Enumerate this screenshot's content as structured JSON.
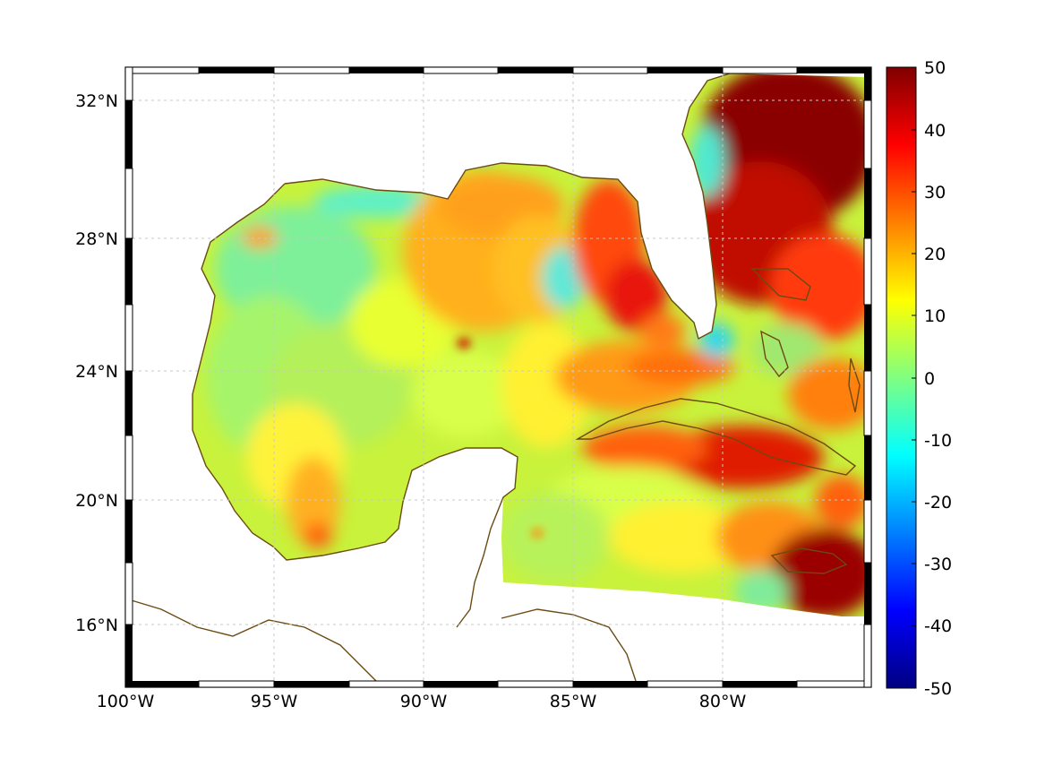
{
  "map": {
    "lon_labels": [
      "100°W",
      "95°W",
      "90°W",
      "85°W",
      "80°W"
    ],
    "lat_labels": [
      "32°N",
      "28°N",
      "24°N",
      "20°N",
      "16°N"
    ],
    "extent": {
      "lon_min": -100,
      "lon_max": -75,
      "lat_min": 14,
      "lat_max": 33
    },
    "grid": true,
    "coast_color": "#6b4a12"
  },
  "colorbar": {
    "ticks": [
      "50",
      "40",
      "30",
      "20",
      "10",
      "0",
      "-10",
      "-20",
      "-30",
      "-40",
      "-50"
    ],
    "min": -50,
    "max": 50,
    "colormap": "jet"
  }
}
